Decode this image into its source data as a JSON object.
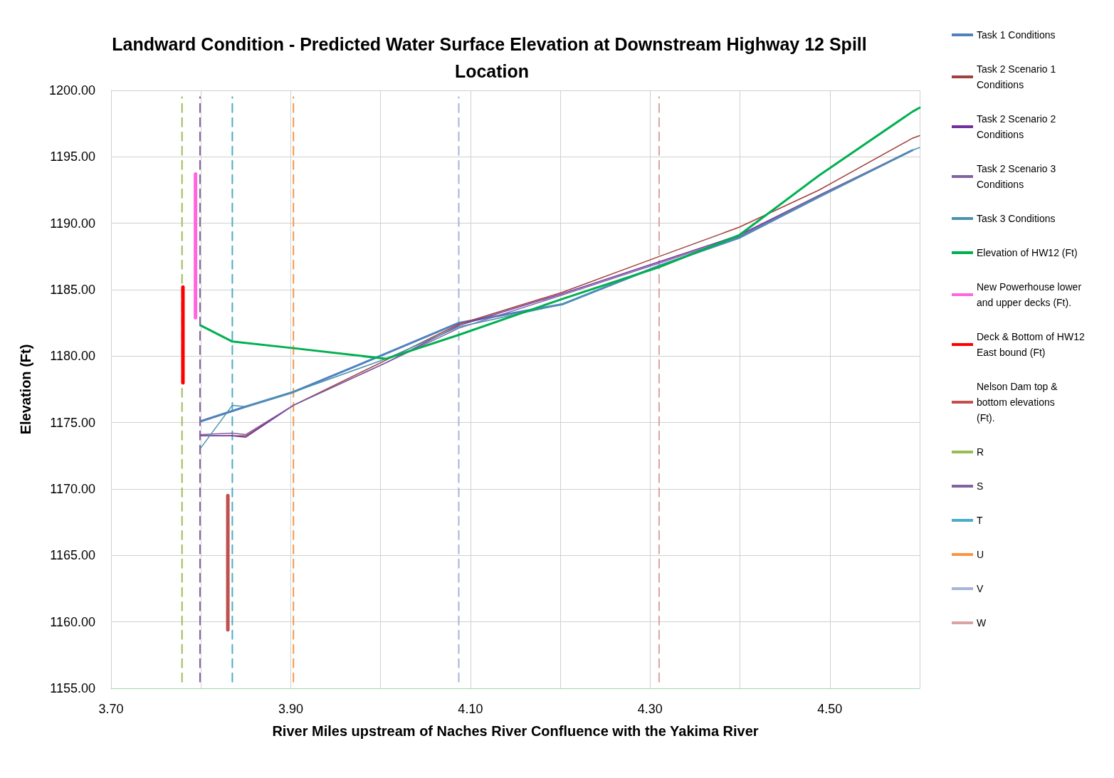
{
  "chart_data": {
    "type": "line",
    "title": "Landward Condition - Predicted Water Surface Elevation at Downstream Highway 12 Spill Location",
    "xlabel": "River Miles upstream of Naches River Confluence with the Yakima River",
    "ylabel": "Elevation (Ft)",
    "xlim": [
      3.7,
      4.6
    ],
    "ylim": [
      1155,
      1200
    ],
    "xticks": [
      {
        "value": 3.7,
        "label": "3.70"
      },
      {
        "value": 3.8,
        "label": null
      },
      {
        "value": 3.9,
        "label": "3.90"
      },
      {
        "value": 4.0,
        "label": null
      },
      {
        "value": 4.1,
        "label": "4.10"
      },
      {
        "value": 4.2,
        "label": null
      },
      {
        "value": 4.3,
        "label": "4.30"
      },
      {
        "value": 4.4,
        "label": null
      },
      {
        "value": 4.5,
        "label": "4.50"
      },
      {
        "value": 4.6,
        "label": null
      }
    ],
    "yticks": [
      {
        "value": 1155,
        "label": "1155.00"
      },
      {
        "value": 1160,
        "label": "1160.00"
      },
      {
        "value": 1165,
        "label": "1165.00"
      },
      {
        "value": 1170,
        "label": "1170.00"
      },
      {
        "value": 1175,
        "label": "1175.00"
      },
      {
        "value": 1180,
        "label": "1180.00"
      },
      {
        "value": 1185,
        "label": "1185.00"
      },
      {
        "value": 1190,
        "label": "1190.00"
      },
      {
        "value": 1195,
        "label": "1195.00"
      },
      {
        "value": 1200,
        "label": "1200.00"
      }
    ],
    "grid": true,
    "legend": "right",
    "line_style": "solid",
    "series": [
      {
        "name": "Task 1 Conditions",
        "color": "#4f81bd",
        "x": [
          3.8,
          3.85,
          3.903,
          4.006,
          4.087,
          4.202,
          4.31,
          4.399,
          4.488,
          4.592
        ],
        "values": [
          1175.1,
          1176.2,
          1177.3,
          1180.2,
          1182.5,
          1183.9,
          1186.8,
          1188.9,
          1192.0,
          1195.5
        ]
      },
      {
        "name": "Task 2 Scenario 1 Conditions",
        "color": "#a0413e",
        "x": [
          3.8,
          3.835,
          3.85,
          3.903,
          4.006,
          4.087,
          4.202,
          4.31,
          4.399,
          4.488,
          4.592,
          4.6
        ],
        "values": [
          1174.0,
          1174.0,
          1174.0,
          1176.3,
          1179.7,
          1182.4,
          1184.8,
          1187.5,
          1189.7,
          1192.5,
          1196.4,
          1196.6
        ]
      },
      {
        "name": "Task 2 Scenario 2 Conditions",
        "color": "#7030a0",
        "x": [
          3.8,
          3.835,
          3.85,
          3.903,
          4.006,
          4.087,
          4.202,
          4.31,
          4.399,
          4.488,
          4.592
        ],
        "values": [
          1174.0,
          1174.0,
          1173.9,
          1176.3,
          1179.5,
          1182.3,
          1184.7,
          1187.1,
          1189.1,
          1192.1,
          1195.5
        ]
      },
      {
        "name": "Task 2 Scenario 3 Conditions",
        "color": "#8064a2",
        "x": [
          3.8,
          3.835,
          3.85,
          3.903,
          4.006,
          4.087,
          4.202,
          4.31,
          4.399,
          4.488,
          4.592
        ],
        "values": [
          1174.1,
          1174.2,
          1174.1,
          1176.3,
          1179.5,
          1182.1,
          1184.6,
          1187.0,
          1189.0,
          1192.1,
          1195.5
        ]
      },
      {
        "name": "Task 3 Conditions",
        "color": "#4a93b0",
        "x": [
          3.8,
          3.835,
          3.85,
          3.903,
          4.006,
          4.087,
          4.202,
          4.31,
          4.399,
          4.488,
          4.592,
          4.6
        ],
        "values": [
          1173.1,
          1176.3,
          1176.2,
          1177.3,
          1179.8,
          1182.2,
          1183.9,
          1186.8,
          1188.9,
          1192.0,
          1195.5,
          1195.7
        ]
      },
      {
        "name": "Elevation of HW12 (Ft)",
        "color": "#00b050",
        "x": [
          3.8,
          3.835,
          3.903,
          4.006,
          4.087,
          4.202,
          4.31,
          4.399,
          4.488,
          4.592,
          4.6
        ],
        "values": [
          1182.3,
          1181.1,
          1180.6,
          1179.8,
          1181.6,
          1184.3,
          1186.7,
          1189.1,
          1193.6,
          1198.4,
          1198.7
        ]
      },
      {
        "name": "New Powerhouse lower and upper decks (Ft).",
        "color": "#ff66dd",
        "x": [
          3.794,
          3.794
        ],
        "values": [
          1182.9,
          1193.7
        ]
      },
      {
        "name": "Deck & Bottom of HW12 East bound (Ft)",
        "color": "#ff0000",
        "x": [
          3.78,
          3.78
        ],
        "values": [
          1178.0,
          1185.2
        ]
      },
      {
        "name": "Nelson Dam top & bottom elevations (Ft).",
        "color": "#c0504d",
        "x": [
          3.83,
          3.83
        ],
        "values": [
          1159.4,
          1169.5
        ]
      },
      {
        "name": "R",
        "color": "#9bbb59",
        "line_style": "dashed",
        "x": [
          3.779,
          3.779
        ],
        "values": [
          1155.5,
          1199.5
        ]
      },
      {
        "name": "S",
        "color": "#8064a2",
        "line_style": "dashed",
        "x": [
          3.799,
          3.799
        ],
        "values": [
          1155.5,
          1199.5
        ]
      },
      {
        "name": "T",
        "color": "#4bacc6",
        "line_style": "dashed",
        "x": [
          3.835,
          3.835
        ],
        "values": [
          1155.5,
          1199.5
        ]
      },
      {
        "name": "U",
        "color": "#f79646",
        "line_style": "dashed",
        "x": [
          3.903,
          3.903
        ],
        "values": [
          1155.5,
          1199.5
        ]
      },
      {
        "name": "V",
        "color": "#a5b6d8",
        "line_style": "dashed",
        "x": [
          4.087,
          4.087
        ],
        "values": [
          1155.5,
          1199.5
        ]
      },
      {
        "name": "W",
        "color": "#d9a3a3",
        "line_style": "dashed",
        "x": [
          4.31,
          4.31
        ],
        "values": [
          1155.5,
          1199.5
        ]
      }
    ]
  }
}
